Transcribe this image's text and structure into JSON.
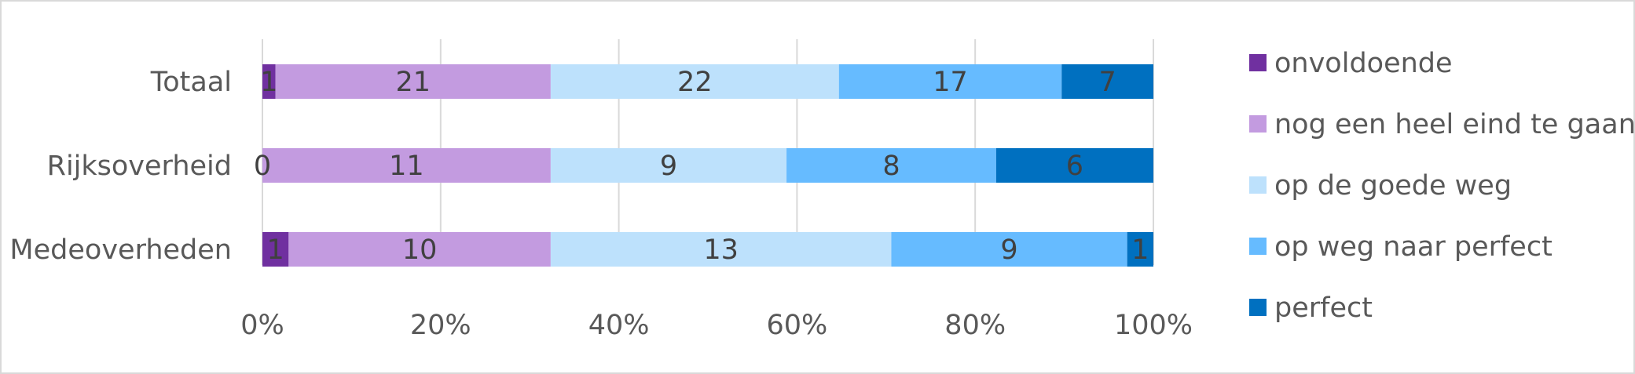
{
  "chart_data": {
    "type": "bar",
    "orientation": "horizontal",
    "stacking": "percent",
    "categories": [
      "Totaal",
      "Rijksoverheid",
      "Medeoverheden"
    ],
    "series": [
      {
        "name": "onvoldoende",
        "values": [
          1,
          0,
          1
        ],
        "color": "#7030A0"
      },
      {
        "name": "nog een heel eind te gaan",
        "values": [
          21,
          11,
          10
        ],
        "color": "#C39BE0"
      },
      {
        "name": "op de goede weg",
        "values": [
          22,
          9,
          13
        ],
        "color": "#BDE1FC"
      },
      {
        "name": "op weg naar perfect",
        "values": [
          17,
          8,
          9
        ],
        "color": "#66BBFF"
      },
      {
        "name": "perfect",
        "values": [
          7,
          6,
          1
        ],
        "color": "#0070C0"
      }
    ],
    "xaxis": {
      "min": 0,
      "max": 100,
      "ticks": [
        "0%",
        "20%",
        "40%",
        "60%",
        "80%",
        "100%"
      ]
    },
    "grid": true,
    "legend_position": "right",
    "data_labels": true
  }
}
